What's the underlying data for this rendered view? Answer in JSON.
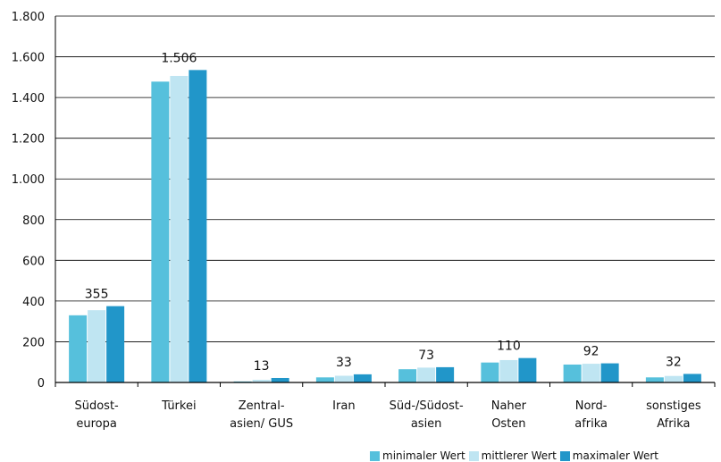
{
  "chart_data": {
    "type": "bar",
    "categories": [
      [
        "Südost-",
        "europa"
      ],
      [
        "Türkei"
      ],
      [
        "Zentral-",
        "asien/ GUS"
      ],
      [
        "Iran"
      ],
      [
        "Süd-/Südost-",
        "asien"
      ],
      [
        "Naher",
        "Osten"
      ],
      [
        "Nord-",
        "afrika"
      ],
      [
        "sonstiges",
        "Afrika"
      ]
    ],
    "series": [
      {
        "name": "minimaler Wert",
        "color": "#56c0dc",
        "values": [
          330,
          1478,
          5,
          25,
          65,
          98,
          88,
          25
        ]
      },
      {
        "name": "mittlerer Wert",
        "color": "#bfe5f2",
        "values": [
          355,
          1506,
          13,
          33,
          73,
          110,
          92,
          32
        ]
      },
      {
        "name": "maximaler Wert",
        "color": "#2196c9",
        "values": [
          375,
          1535,
          22,
          40,
          75,
          120,
          94,
          42
        ]
      }
    ],
    "data_labels": [
      "355",
      "1.506",
      "13",
      "33",
      "73",
      "110",
      "92",
      "32"
    ],
    "yticks": [
      {
        "value": 0,
        "label": "0"
      },
      {
        "value": 200,
        "label": "200"
      },
      {
        "value": 400,
        "label": "400"
      },
      {
        "value": 600,
        "label": "600"
      },
      {
        "value": 800,
        "label": "800"
      },
      {
        "value": 1000,
        "label": "1.000"
      },
      {
        "value": 1200,
        "label": "1.200"
      },
      {
        "value": 1400,
        "label": "1.400"
      },
      {
        "value": 1600,
        "label": "1.600"
      },
      {
        "value": 1800,
        "label": "1.800"
      }
    ],
    "ylim": [
      0,
      1800
    ],
    "grid": true,
    "legend_position": "bottom-right"
  }
}
